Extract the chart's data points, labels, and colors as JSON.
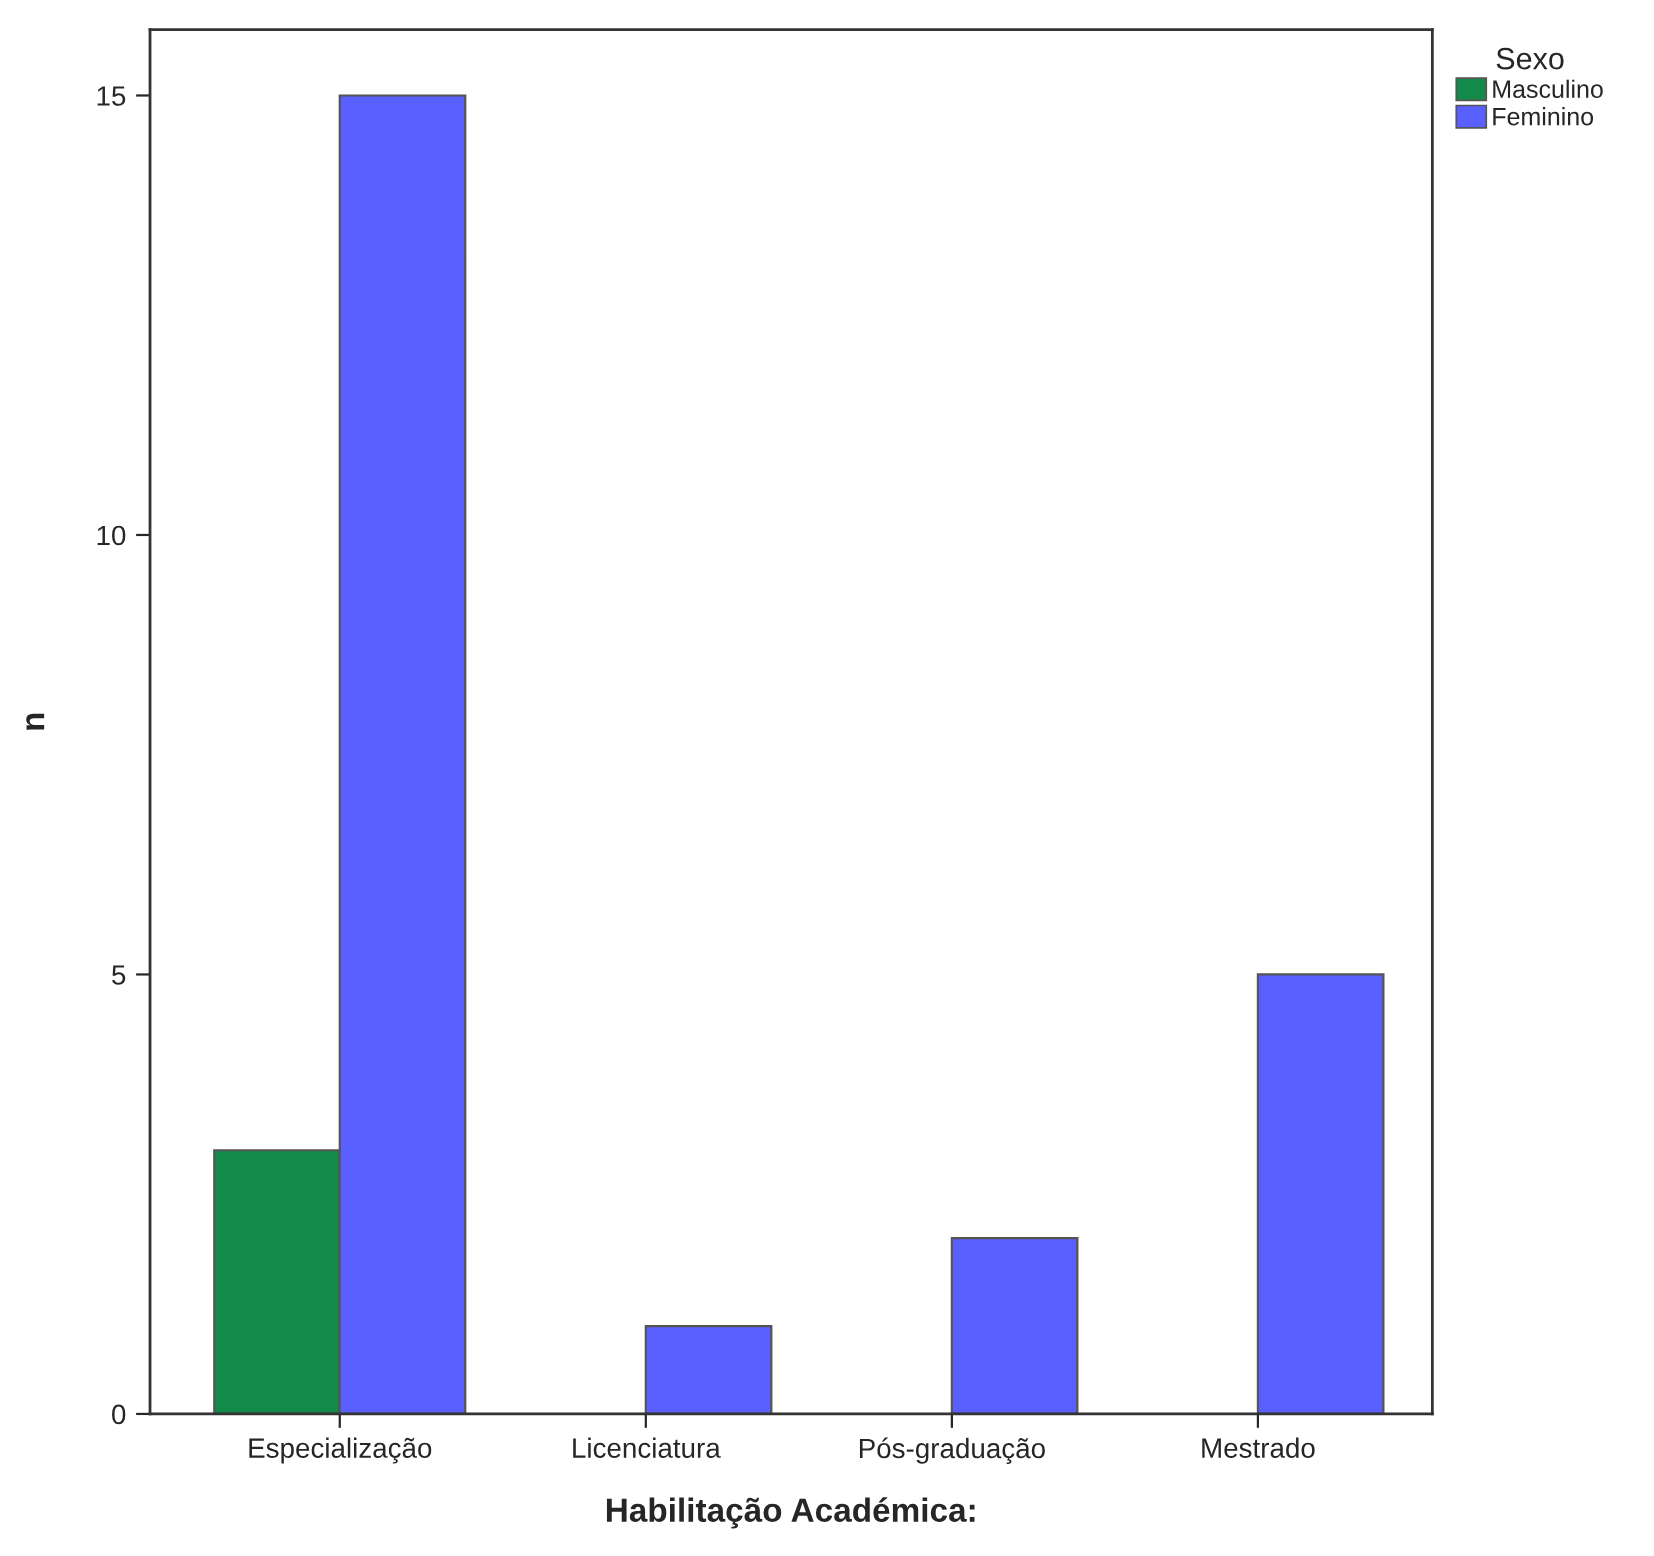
{
  "chart_data": {
    "type": "bar",
    "xlabel": "Habilitação Académica:",
    "ylabel": "n",
    "legend_title": "Sexo",
    "categories": [
      "Especialização",
      "Licenciatura",
      "Pós-graduação",
      "Mestrado"
    ],
    "series": [
      {
        "name": "Masculino",
        "color": "#138a4a",
        "values": [
          3,
          null,
          null,
          null
        ]
      },
      {
        "name": "Feminino",
        "color": "#5a5fff",
        "values": [
          15,
          1,
          2,
          5
        ]
      }
    ],
    "ylim": [
      0,
      15.75
    ],
    "yticks": [
      0,
      5,
      10,
      15
    ],
    "grid": false,
    "legend": "top right"
  }
}
